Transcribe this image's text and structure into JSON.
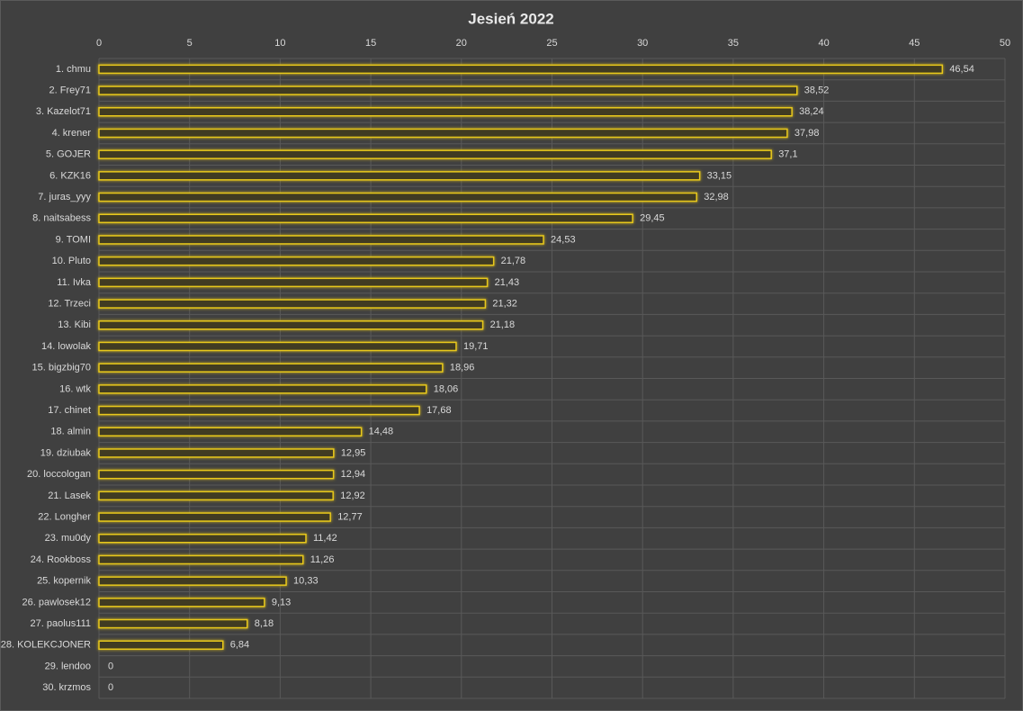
{
  "chart_data": {
    "type": "hbar",
    "title": "Jesień 2022",
    "categories": [
      "1. chmu",
      "2. Frey71",
      "3. Kazelot71",
      "4. krener",
      "5. GOJER",
      "6. KZK16",
      "7. juras_yyy",
      "8. naitsabess",
      "9. TOMI",
      "10. Pluto",
      "11. Ivka",
      "12. Trzeci",
      "13. Kibi",
      "14. lowolak",
      "15. bigzbig70",
      "16. wtk",
      "17. chinet",
      "18. almin",
      "19. dziubak",
      "20. loccologan",
      "21. Lasek",
      "22. Longher",
      "23. mu0dy",
      "24. Rookboss",
      "25. kopernik",
      "26. pawlosek12",
      "27. paolus111",
      "28. KOLEKCJONER",
      "29. lendoo",
      "30. krzmos"
    ],
    "values": [
      46.54,
      38.52,
      38.24,
      37.98,
      37.1,
      33.15,
      32.98,
      29.45,
      24.53,
      21.78,
      21.43,
      21.32,
      21.18,
      19.71,
      18.96,
      18.06,
      17.68,
      14.48,
      12.95,
      12.94,
      12.92,
      12.77,
      11.42,
      11.26,
      10.33,
      9.13,
      8.18,
      6.84,
      0,
      0
    ],
    "value_labels": [
      "46,54",
      "38,52",
      "38,24",
      "37,98",
      "37,1",
      "33,15",
      "32,98",
      "29,45",
      "24,53",
      "21,78",
      "21,43",
      "21,32",
      "21,18",
      "19,71",
      "18,96",
      "18,06",
      "17,68",
      "14,48",
      "12,95",
      "12,94",
      "12,92",
      "12,77",
      "11,42",
      "11,26",
      "10,33",
      "9,13",
      "8,18",
      "6,84",
      "0",
      "0"
    ],
    "color": "#e8c81a",
    "xlim": [
      0,
      50
    ],
    "xticks": [
      0,
      5,
      10,
      15,
      20,
      25,
      30,
      35,
      40,
      45,
      50
    ],
    "grid": true
  }
}
